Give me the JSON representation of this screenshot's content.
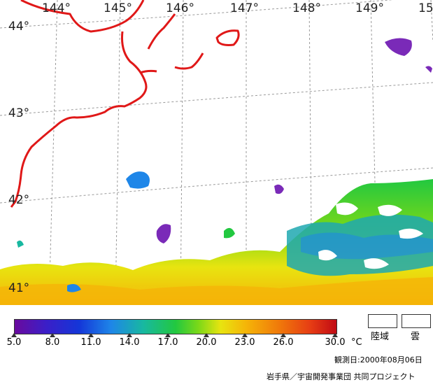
{
  "map": {
    "longitude_labels": [
      "144°",
      "145°",
      "146°",
      "147°",
      "148°",
      "149°",
      "15"
    ],
    "latitude_labels": [
      "44°",
      "43°",
      "42°",
      "41°"
    ]
  },
  "colorbar": {
    "tick_labels": [
      "5.0",
      "8.0",
      "11.0",
      "14.0",
      "17.0",
      "20.0",
      "23.0",
      "26.0",
      "30.0"
    ],
    "unit": "°C",
    "colors": [
      "#6a0a9e",
      "#3a1fc8",
      "#1436d8",
      "#1e86e8",
      "#18b8a0",
      "#22c840",
      "#7ad818",
      "#e8e410",
      "#f5b408",
      "#f07a0a",
      "#e63c14",
      "#c00a14"
    ]
  },
  "legend": {
    "land_label": "陸域",
    "cloud_label": "雲"
  },
  "observation_date": "観測日:2000年08月06日",
  "credit": "岩手県／宇宙開発事業団 共同プロジェクト"
}
